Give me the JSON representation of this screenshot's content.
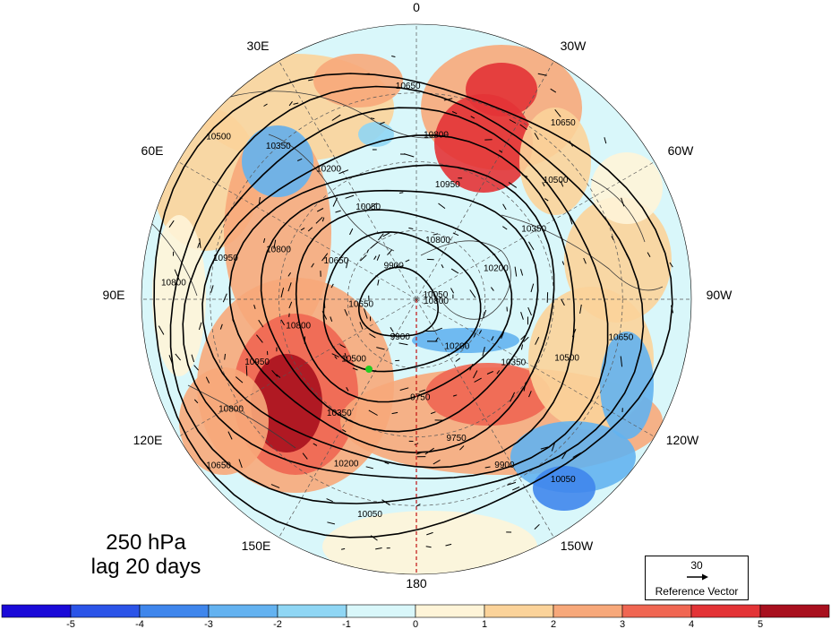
{
  "map": {
    "level": "250 hPa",
    "lag": "lag 20 days",
    "longitude_labels": [
      "0",
      "30W",
      "60W",
      "90W",
      "120W",
      "150W",
      "180",
      "150E",
      "120E",
      "90E",
      "60E",
      "30E"
    ],
    "contour_levels": [
      9750,
      9900,
      10050,
      10200,
      10350,
      10500,
      10650,
      10800,
      10950
    ],
    "contour_labels": [
      "10800",
      "10650",
      "10500",
      "10350",
      "10200",
      "10050",
      "9900",
      "9750",
      "9750",
      "9900",
      "10050",
      "10200",
      "10350",
      "10500",
      "10650",
      "10800",
      "10950",
      "10800",
      "10650",
      "10800",
      "10950",
      "10800",
      "10650",
      "10500",
      "10350",
      "10200",
      "10050",
      "9900",
      "10650",
      "10800",
      "10950",
      "10800",
      "10650",
      "10500",
      "10350",
      "10200",
      "10050"
    ],
    "marker_color": "#22cc22",
    "reference_vector": {
      "magnitude": "30",
      "label": "Reference Vector"
    }
  },
  "colorbar": {
    "ticks": [
      "-5",
      "-4",
      "-3",
      "-2",
      "-1",
      "0",
      "1",
      "2",
      "3",
      "4",
      "5"
    ],
    "colors": [
      "#1a0ad8",
      "#2b54e8",
      "#3f86ec",
      "#63b2f0",
      "#8fd6f4",
      "#d9f7fa",
      "#fef4d8",
      "#fbd39a",
      "#f7a87a",
      "#f06652",
      "#e33336",
      "#a8101e"
    ]
  }
}
